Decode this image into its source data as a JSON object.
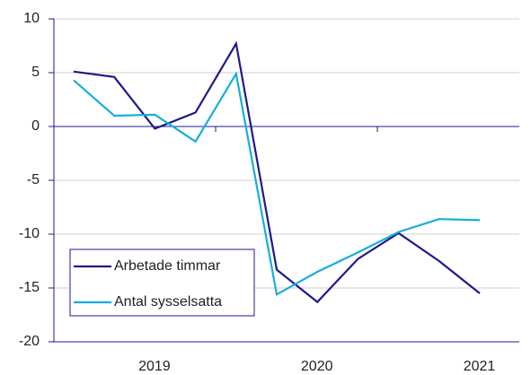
{
  "chart_data": {
    "type": "line",
    "categories": [
      null,
      null,
      "2019",
      null,
      null,
      null,
      "2020",
      null,
      null,
      null,
      "2021"
    ],
    "series": [
      {
        "name": "Arbetade timmar",
        "color": "#1e1a8a",
        "values": [
          5.1,
          4.6,
          -0.2,
          1.3,
          7.7,
          -13.3,
          -16.3,
          -12.3,
          -9.9,
          -12.5,
          -15.5
        ]
      },
      {
        "name": "Antal sysselsatta",
        "color": "#17aedb",
        "values": [
          4.3,
          1.0,
          1.1,
          -1.4,
          4.9,
          -15.6,
          -13.5,
          -11.7,
          -9.8,
          -8.6,
          -8.7
        ]
      }
    ],
    "ylim": [
      -20,
      10
    ],
    "yticks": [
      -20,
      -15,
      -10,
      -5,
      0,
      5,
      10
    ],
    "grid": true,
    "legend": "lower left"
  }
}
